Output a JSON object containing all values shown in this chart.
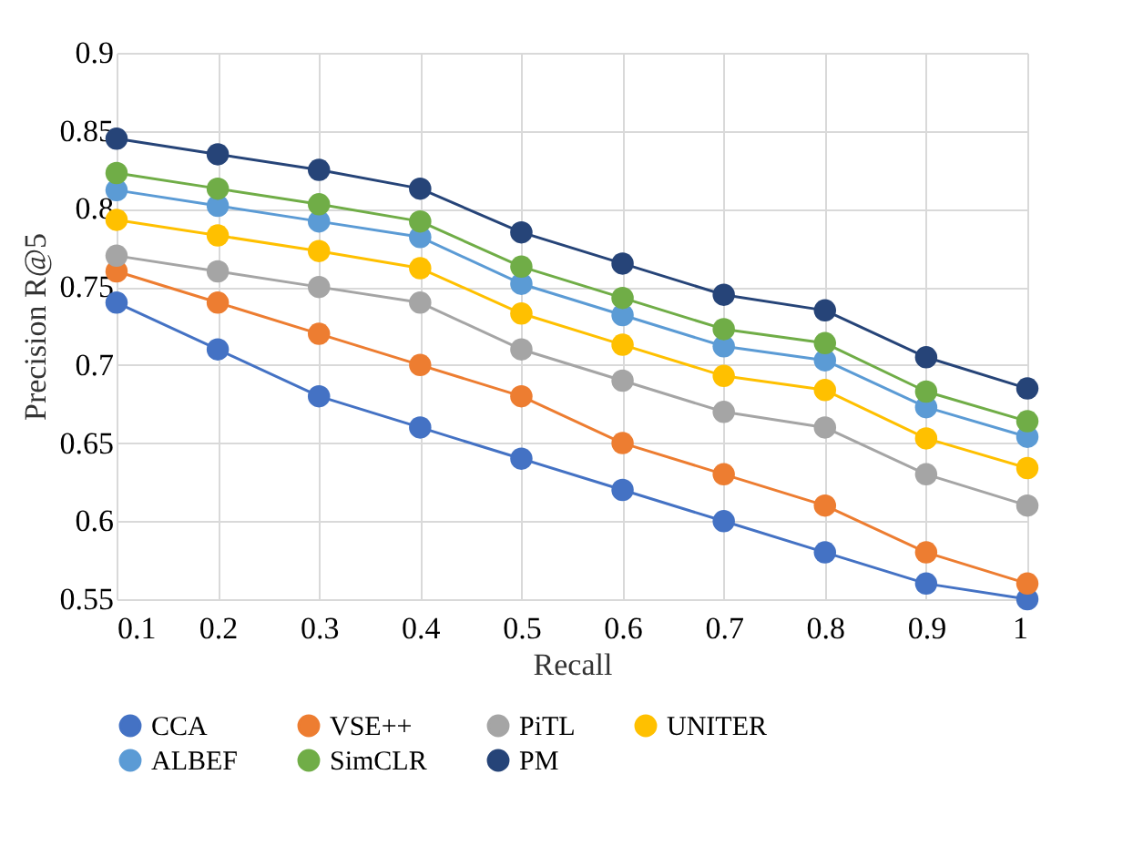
{
  "chart_data": {
    "type": "line",
    "xlabel": "Recall",
    "ylabel": "Precision R@5",
    "categories": [
      "0.1",
      "0.2",
      "0.3",
      "0.4",
      "0.5",
      "0.6",
      "0.7",
      "0.8",
      "0.9",
      "1"
    ],
    "ylim": [
      0.55,
      0.9
    ],
    "yticks": [
      0.55,
      0.6,
      0.65,
      0.7,
      0.75,
      0.8,
      0.85,
      0.9
    ],
    "grid": true,
    "legend": "bottom",
    "marker": "circle",
    "line_style": "solid",
    "series": [
      {
        "name": "CCA",
        "color": "#4472c4",
        "values": [
          0.74,
          0.71,
          0.68,
          0.66,
          0.64,
          0.62,
          0.6,
          0.58,
          0.56,
          0.55
        ]
      },
      {
        "name": "VSE++",
        "color": "#ed7d31",
        "values": [
          0.76,
          0.74,
          0.72,
          0.7,
          0.68,
          0.65,
          0.63,
          0.61,
          0.58,
          0.56
        ]
      },
      {
        "name": "PiTL",
        "color": "#a5a5a5",
        "values": [
          0.77,
          0.76,
          0.75,
          0.74,
          0.71,
          0.69,
          0.67,
          0.66,
          0.63,
          0.61
        ]
      },
      {
        "name": "UNITER",
        "color": "#ffc000",
        "values": [
          0.793,
          0.783,
          0.773,
          0.762,
          0.733,
          0.713,
          0.693,
          0.684,
          0.653,
          0.634
        ]
      },
      {
        "name": "ALBEF",
        "color": "#5b9bd5",
        "values": [
          0.812,
          0.802,
          0.792,
          0.782,
          0.752,
          0.732,
          0.712,
          0.703,
          0.673,
          0.654
        ]
      },
      {
        "name": "SimCLR",
        "color": "#70ad47",
        "values": [
          0.823,
          0.813,
          0.803,
          0.792,
          0.763,
          0.743,
          0.723,
          0.714,
          0.683,
          0.664
        ]
      },
      {
        "name": "PM",
        "color": "#264478",
        "values": [
          0.845,
          0.835,
          0.825,
          0.813,
          0.785,
          0.765,
          0.745,
          0.735,
          0.705,
          0.685
        ]
      }
    ]
  }
}
